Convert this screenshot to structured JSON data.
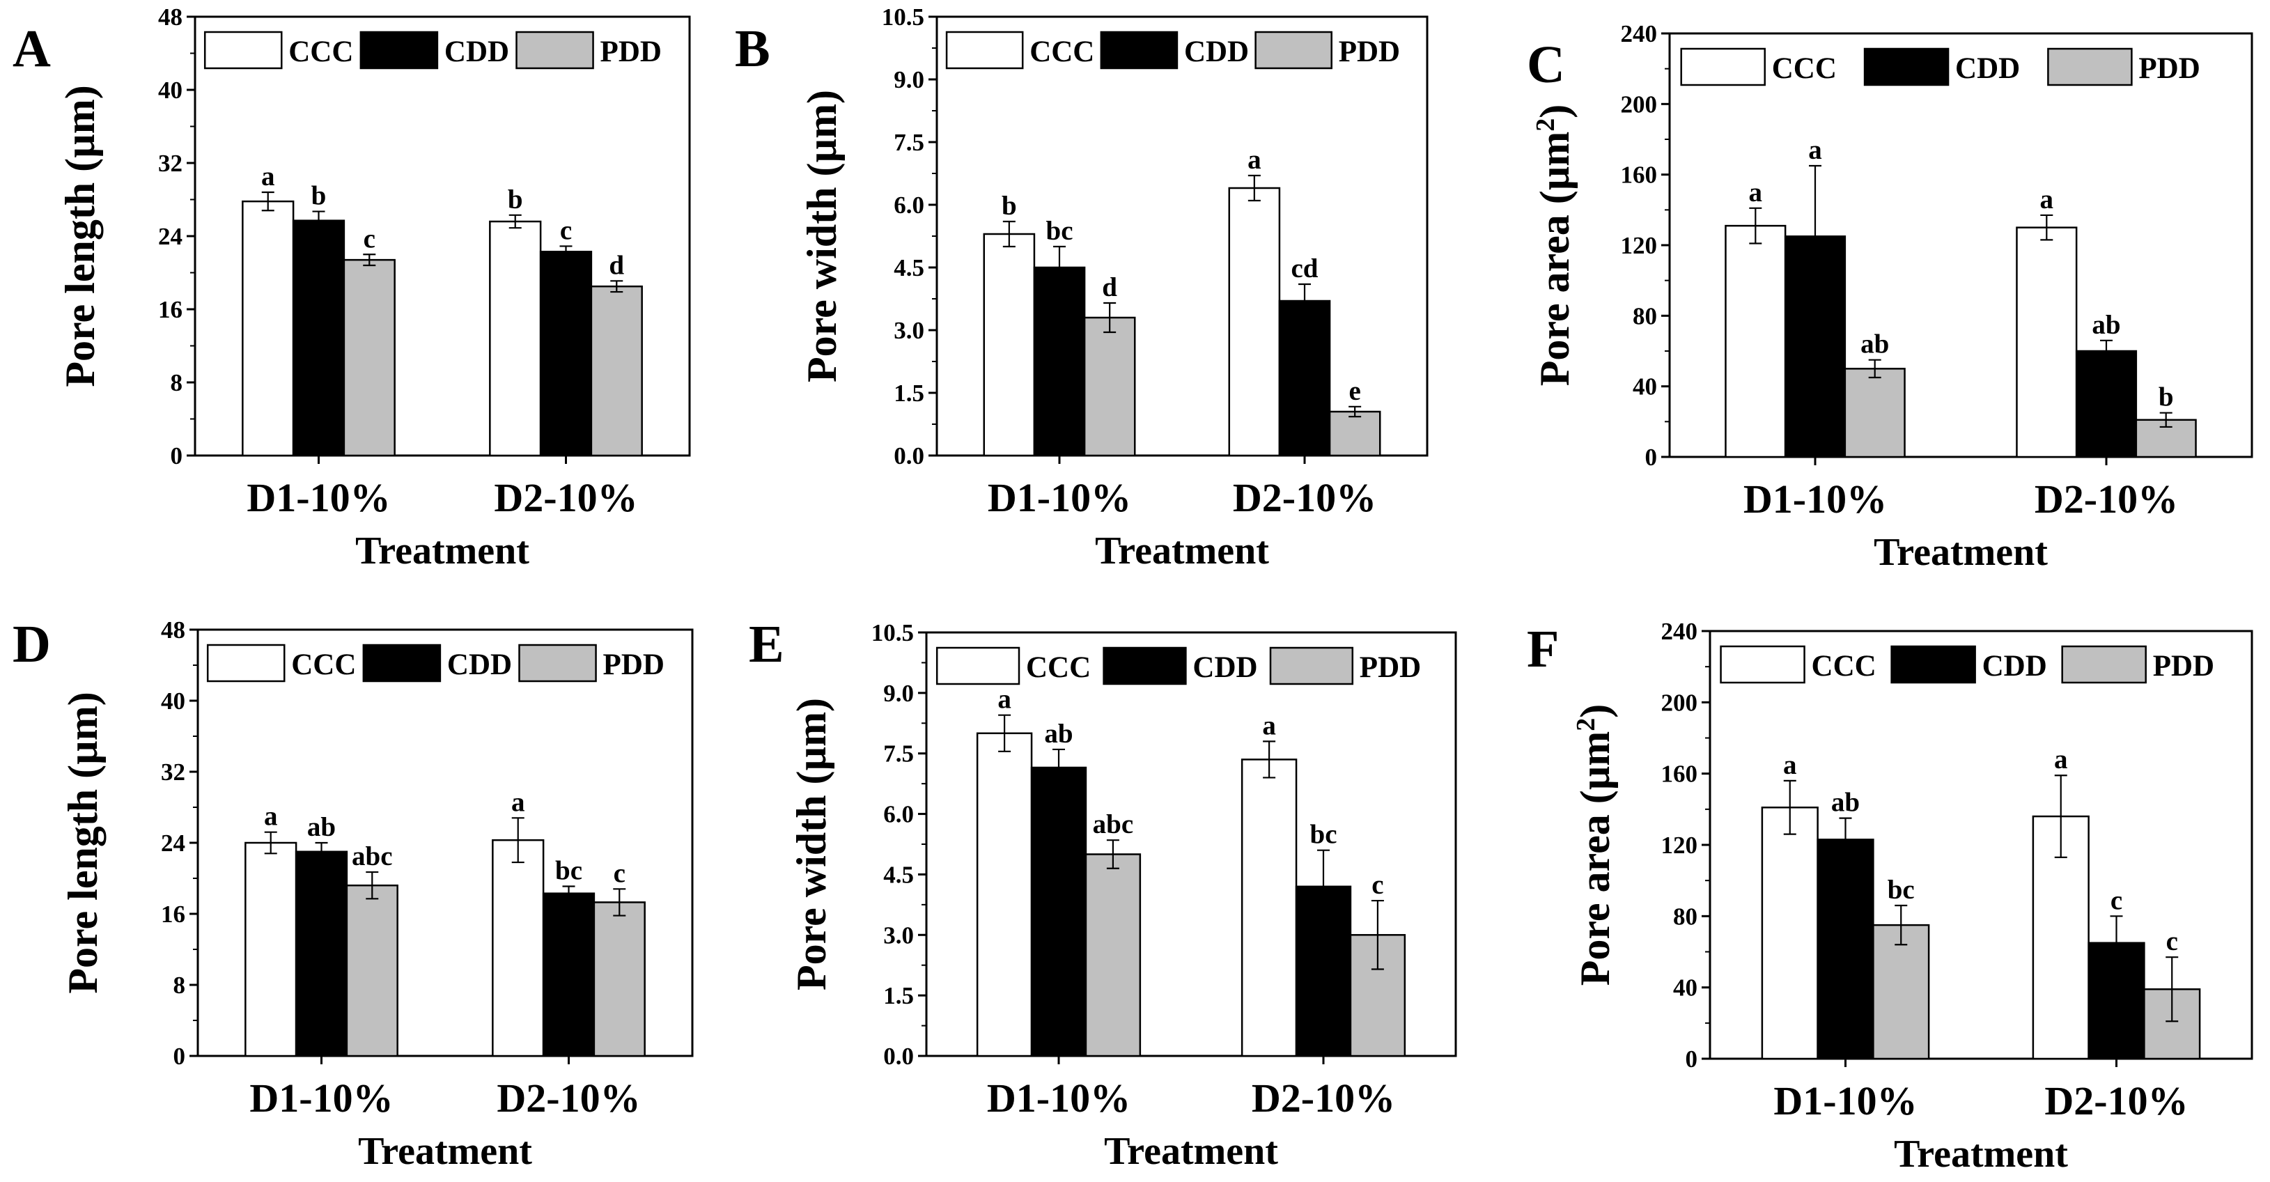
{
  "legend_labels": [
    "CCC",
    "CDD",
    "PDD"
  ],
  "series_colors": {
    "CCC": "#ffffff",
    "CDD": "#000000",
    "PDD": "#c0c0c0"
  },
  "chart_data": [
    {
      "panel": "A",
      "type": "bar",
      "categories": [
        "D1-10%",
        "D2-10%"
      ],
      "xlabel": "Treatment",
      "ylabel": "Pore length (µm)",
      "ylabel_superscript": "",
      "ylim": [
        0,
        48
      ],
      "yticks": [
        "0",
        "8",
        "16",
        "24",
        "32",
        "40",
        "48"
      ],
      "legend_position": "top",
      "series": [
        {
          "name": "CCC",
          "values": [
            27.8,
            25.6
          ],
          "errors": [
            1.0,
            0.7
          ],
          "labels": [
            "a",
            "b"
          ]
        },
        {
          "name": "CDD",
          "values": [
            25.7,
            22.3
          ],
          "errors": [
            1.0,
            0.6
          ],
          "labels": [
            "b",
            "c"
          ]
        },
        {
          "name": "PDD",
          "values": [
            21.4,
            18.5
          ],
          "errors": [
            0.6,
            0.6
          ],
          "labels": [
            "c",
            "d"
          ]
        }
      ]
    },
    {
      "panel": "B",
      "type": "bar",
      "categories": [
        "D1-10%",
        "D2-10%"
      ],
      "xlabel": "Treatment",
      "ylabel": "Pore width (µm)",
      "ylabel_superscript": "",
      "ylim": [
        0,
        10.5
      ],
      "yticks": [
        "0.0",
        "1.5",
        "3.0",
        "4.5",
        "6.0",
        "7.5",
        "9.0",
        "10.5"
      ],
      "legend_position": "top",
      "series": [
        {
          "name": "CCC",
          "values": [
            5.3,
            6.4
          ],
          "errors": [
            0.3,
            0.3
          ],
          "labels": [
            "b",
            "a"
          ]
        },
        {
          "name": "CDD",
          "values": [
            4.5,
            3.7
          ],
          "errors": [
            0.5,
            0.4
          ],
          "labels": [
            "bc",
            "cd"
          ]
        },
        {
          "name": "PDD",
          "values": [
            3.3,
            1.05
          ],
          "errors": [
            0.35,
            0.12
          ],
          "labels": [
            "d",
            "e"
          ]
        }
      ]
    },
    {
      "panel": "C",
      "type": "bar",
      "categories": [
        "D1-10%",
        "D2-10%"
      ],
      "xlabel": "Treatment",
      "ylabel": "Pore area (µm",
      "ylabel_superscript": "2",
      "ylim": [
        0,
        240
      ],
      "yticks": [
        "0",
        "40",
        "80",
        "120",
        "160",
        "200",
        "240"
      ],
      "legend_position": "top",
      "series": [
        {
          "name": "CCC",
          "values": [
            131,
            130
          ],
          "errors": [
            10,
            7
          ],
          "labels": [
            "a",
            "a"
          ]
        },
        {
          "name": "CDD",
          "values": [
            125,
            60
          ],
          "errors": [
            40,
            6
          ],
          "labels": [
            "a",
            "ab"
          ]
        },
        {
          "name": "PDD",
          "values": [
            50,
            21
          ],
          "errors": [
            5,
            4
          ],
          "labels": [
            "ab",
            "b"
          ]
        }
      ]
    },
    {
      "panel": "D",
      "type": "bar",
      "categories": [
        "D1-10%",
        "D2-10%"
      ],
      "xlabel": "Treatment",
      "ylabel": "Pore length (µm)",
      "ylabel_superscript": "",
      "ylim": [
        0,
        48
      ],
      "yticks": [
        "0",
        "8",
        "16",
        "24",
        "32",
        "40",
        "48"
      ],
      "legend_position": "top",
      "series": [
        {
          "name": "CCC",
          "values": [
            24.0,
            24.3
          ],
          "errors": [
            1.2,
            2.5
          ],
          "labels": [
            "a",
            "a"
          ]
        },
        {
          "name": "CDD",
          "values": [
            23.0,
            18.3
          ],
          "errors": [
            1.0,
            0.8
          ],
          "labels": [
            "ab",
            "bc"
          ]
        },
        {
          "name": "PDD",
          "values": [
            19.2,
            17.3
          ],
          "errors": [
            1.5,
            1.5
          ],
          "labels": [
            "abc",
            "c"
          ]
        }
      ]
    },
    {
      "panel": "E",
      "type": "bar",
      "categories": [
        "D1-10%",
        "D2-10%"
      ],
      "xlabel": "Treatment",
      "ylabel": "Pore width (µm)",
      "ylabel_superscript": "",
      "ylim": [
        0,
        10.5
      ],
      "yticks": [
        "0.0",
        "1.5",
        "3.0",
        "4.5",
        "6.0",
        "7.5",
        "9.0",
        "10.5"
      ],
      "legend_position": "top",
      "series": [
        {
          "name": "CCC",
          "values": [
            8.0,
            7.35
          ],
          "errors": [
            0.45,
            0.45
          ],
          "labels": [
            "a",
            "a"
          ]
        },
        {
          "name": "CDD",
          "values": [
            7.15,
            4.2
          ],
          "errors": [
            0.45,
            0.9
          ],
          "labels": [
            "ab",
            "bc"
          ]
        },
        {
          "name": "PDD",
          "values": [
            5.0,
            3.0
          ],
          "errors": [
            0.35,
            0.85
          ],
          "labels": [
            "abc",
            "c"
          ]
        }
      ]
    },
    {
      "panel": "F",
      "type": "bar",
      "categories": [
        "D1-10%",
        "D2-10%"
      ],
      "xlabel": "Treatment",
      "ylabel": "Pore area (µm",
      "ylabel_superscript": "2",
      "ylim": [
        0,
        240
      ],
      "yticks": [
        "0",
        "40",
        "80",
        "120",
        "160",
        "200",
        "240"
      ],
      "legend_position": "top",
      "series": [
        {
          "name": "CCC",
          "values": [
            141,
            136
          ],
          "errors": [
            15,
            23
          ],
          "labels": [
            "a",
            "a"
          ]
        },
        {
          "name": "CDD",
          "values": [
            123,
            65
          ],
          "errors": [
            12,
            15
          ],
          "labels": [
            "ab",
            "c"
          ]
        },
        {
          "name": "PDD",
          "values": [
            75,
            39
          ],
          "errors": [
            11,
            18
          ],
          "labels": [
            "bc",
            "c"
          ]
        }
      ]
    }
  ]
}
